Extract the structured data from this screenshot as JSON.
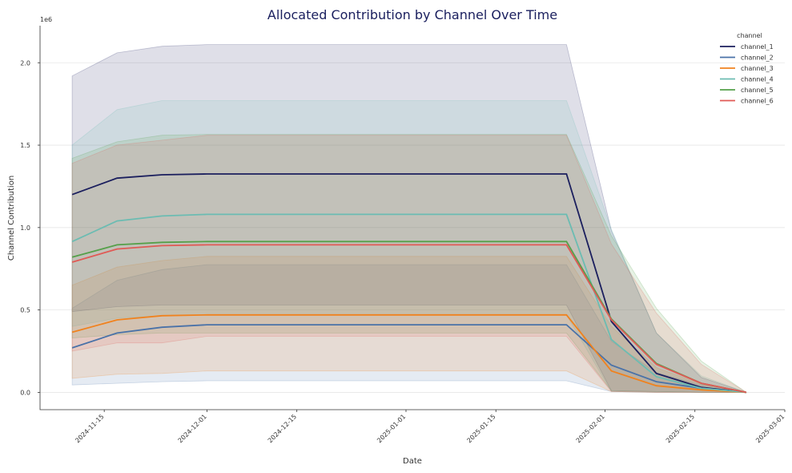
{
  "chart_data": {
    "type": "line",
    "title": "Allocated Contribution by Channel Over Time",
    "xlabel": "Date",
    "ylabel": "Channel Contribution",
    "y_offset_label": "1e6",
    "y_scale": 1000000,
    "ylim": [
      -0.105,
      2.225
    ],
    "xlim": [
      "2024-11-05",
      "2025-03-01"
    ],
    "yticks": [
      0.0,
      0.5,
      1.0,
      1.5,
      2.0
    ],
    "ytick_labels": [
      "0.0",
      "0.5",
      "1.0",
      "1.5",
      "2.0"
    ],
    "xticks": [
      "2024-11-15",
      "2024-12-01",
      "2024-12-15",
      "2025-01-01",
      "2025-01-15",
      "2025-02-01",
      "2025-02-15",
      "2025-03-01"
    ],
    "grid": "horizontal",
    "legend_title": "channel",
    "legend_position": "top-right",
    "x": [
      "2024-11-10",
      "2024-11-17",
      "2024-11-24",
      "2024-12-01",
      "2024-12-15",
      "2025-01-01",
      "2025-01-15",
      "2025-01-26",
      "2025-02-02",
      "2025-02-09",
      "2025-02-16",
      "2025-02-23"
    ],
    "series": [
      {
        "name": "channel_1",
        "color": "#1b1f5e",
        "values": [
          1.2,
          1.3,
          1.32,
          1.325,
          1.325,
          1.325,
          1.325,
          1.325,
          0.43,
          0.115,
          0.03,
          0.0
        ],
        "upper": [
          1.92,
          2.06,
          2.1,
          2.11,
          2.11,
          2.11,
          2.11,
          2.11,
          0.98,
          0.36,
          0.09,
          0.0
        ],
        "lower": [
          0.49,
          0.52,
          0.53,
          0.53,
          0.53,
          0.53,
          0.53,
          0.53,
          0.01,
          0.005,
          0.0,
          0.0
        ]
      },
      {
        "name": "channel_2",
        "color": "#4a72a8",
        "values": [
          0.27,
          0.36,
          0.395,
          0.41,
          0.41,
          0.41,
          0.41,
          0.41,
          0.165,
          0.065,
          0.025,
          0.0
        ],
        "upper": [
          0.51,
          0.68,
          0.745,
          0.775,
          0.775,
          0.775,
          0.775,
          0.775,
          0.31,
          0.12,
          0.045,
          0.0
        ],
        "lower": [
          0.045,
          0.055,
          0.065,
          0.07,
          0.07,
          0.07,
          0.07,
          0.07,
          0.005,
          0.0,
          0.0,
          0.0
        ]
      },
      {
        "name": "channel_3",
        "color": "#f0821e",
        "values": [
          0.365,
          0.44,
          0.465,
          0.47,
          0.47,
          0.47,
          0.47,
          0.47,
          0.13,
          0.04,
          0.015,
          0.0
        ],
        "upper": [
          0.65,
          0.76,
          0.8,
          0.825,
          0.825,
          0.825,
          0.825,
          0.825,
          0.4,
          0.15,
          0.05,
          0.0
        ],
        "lower": [
          0.085,
          0.11,
          0.115,
          0.13,
          0.13,
          0.13,
          0.13,
          0.13,
          0.005,
          0.0,
          0.0,
          0.0
        ]
      },
      {
        "name": "channel_4",
        "color": "#6bbcb2",
        "values": [
          0.915,
          1.04,
          1.07,
          1.08,
          1.08,
          1.08,
          1.08,
          1.08,
          0.32,
          0.095,
          0.025,
          0.0
        ],
        "upper": [
          1.5,
          1.715,
          1.77,
          1.77,
          1.77,
          1.77,
          1.77,
          1.77,
          0.99,
          0.36,
          0.1,
          0.0
        ],
        "lower": [
          0.4,
          0.45,
          0.465,
          0.47,
          0.47,
          0.47,
          0.47,
          0.47,
          0.005,
          0.0,
          0.0,
          0.0
        ]
      },
      {
        "name": "channel_5",
        "color": "#55a04a",
        "values": [
          0.82,
          0.895,
          0.91,
          0.915,
          0.915,
          0.915,
          0.915,
          0.915,
          0.445,
          0.175,
          0.055,
          0.0
        ],
        "upper": [
          1.42,
          1.52,
          1.56,
          1.565,
          1.565,
          1.565,
          1.565,
          1.565,
          0.95,
          0.51,
          0.19,
          0.0
        ],
        "lower": [
          0.33,
          0.35,
          0.36,
          0.36,
          0.36,
          0.36,
          0.36,
          0.36,
          0.01,
          0.005,
          0.0,
          0.0
        ]
      },
      {
        "name": "channel_6",
        "color": "#e05a55",
        "values": [
          0.79,
          0.87,
          0.89,
          0.895,
          0.895,
          0.895,
          0.895,
          0.895,
          0.44,
          0.17,
          0.055,
          0.0
        ],
        "upper": [
          1.39,
          1.5,
          1.53,
          1.56,
          1.56,
          1.56,
          1.56,
          1.56,
          0.9,
          0.48,
          0.17,
          0.0
        ],
        "lower": [
          0.25,
          0.3,
          0.3,
          0.34,
          0.34,
          0.34,
          0.34,
          0.34,
          0.005,
          0.0,
          0.0,
          0.0
        ]
      }
    ]
  }
}
